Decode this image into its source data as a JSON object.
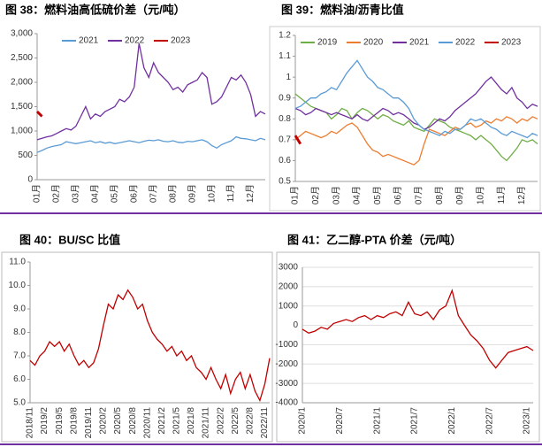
{
  "chart_data": [
    {
      "type": "line",
      "title": "图 38：燃料油高低硫价差（元/吨）",
      "legend": "top",
      "grid": false,
      "categories": [
        "01月",
        null,
        null,
        null,
        "02月",
        null,
        null,
        null,
        "03月",
        null,
        null,
        null,
        "04月",
        null,
        null,
        null,
        "05月",
        null,
        null,
        null,
        "06月",
        null,
        null,
        null,
        "07月",
        null,
        null,
        null,
        "08月",
        null,
        null,
        null,
        "09月",
        null,
        null,
        null,
        "10月",
        null,
        null,
        null,
        "11月",
        null,
        null,
        null,
        "12月",
        null,
        null,
        null
      ],
      "ylim": [
        0,
        3000
      ],
      "yticks": [
        0,
        500,
        {
          "value": 1000,
          "label": "1,000"
        },
        {
          "value": 1500,
          "label": "1,500"
        },
        {
          "value": 2000,
          "label": "2,000"
        },
        {
          "value": 2500,
          "label": "2,500"
        },
        {
          "value": 3000,
          "label": "3,000"
        }
      ],
      "series": [
        {
          "name": "2021",
          "color": "#5b9bd5",
          "values": [
            560,
            600,
            650,
            680,
            700,
            720,
            780,
            760,
            740,
            760,
            780,
            800,
            760,
            780,
            750,
            770,
            740,
            760,
            780,
            800,
            780,
            760,
            790,
            810,
            800,
            820,
            790,
            780,
            800,
            770,
            760,
            790,
            780,
            800,
            820,
            780,
            700,
            650,
            720,
            760,
            800,
            880,
            850,
            840,
            820,
            800,
            850,
            820
          ]
        },
        {
          "name": "2022",
          "color": "#7030a0",
          "values": [
            820,
            850,
            880,
            900,
            950,
            1000,
            1050,
            1020,
            1100,
            1300,
            1500,
            1250,
            1350,
            1300,
            1400,
            1450,
            1500,
            1650,
            1600,
            1700,
            1900,
            2800,
            2300,
            2100,
            2400,
            2200,
            2100,
            2000,
            1850,
            1900,
            1800,
            1950,
            2000,
            2050,
            2200,
            2100,
            1550,
            1600,
            1700,
            1900,
            2100,
            2050,
            2150,
            2000,
            1750,
            1300,
            1400,
            1350
          ]
        },
        {
          "name": "2023",
          "color": "#c00000",
          "values": [
            1400,
            1300,
            null,
            null,
            null,
            null,
            null,
            null,
            null,
            null,
            null,
            null,
            null,
            null,
            null,
            null,
            null,
            null,
            null,
            null,
            null,
            null,
            null,
            null,
            null,
            null,
            null,
            null,
            null,
            null,
            null,
            null,
            null,
            null,
            null,
            null,
            null,
            null,
            null,
            null,
            null,
            null,
            null,
            null,
            null,
            null,
            null,
            null
          ]
        }
      ]
    },
    {
      "type": "line",
      "title": "图 39：燃料油/沥青比值",
      "legend": "top",
      "grid": false,
      "categories": [
        "01月",
        null,
        null,
        null,
        "02月",
        null,
        null,
        null,
        "03月",
        null,
        null,
        null,
        "04月",
        null,
        null,
        null,
        "05月",
        null,
        null,
        null,
        "06月",
        null,
        null,
        null,
        "07月",
        null,
        null,
        null,
        "08月",
        null,
        null,
        null,
        "09月",
        null,
        null,
        null,
        "10月",
        null,
        null,
        null,
        "11月",
        null,
        null,
        null,
        "12月",
        null,
        null,
        null
      ],
      "ylim": [
        0.5,
        1.2
      ],
      "yticks": [
        0.5,
        0.6,
        0.7,
        0.8,
        0.9,
        1,
        1.1,
        1.2
      ],
      "series": [
        {
          "name": "2019",
          "color": "#70ad47",
          "values": [
            0.92,
            0.9,
            0.88,
            0.86,
            0.85,
            0.84,
            0.83,
            0.8,
            0.82,
            0.85,
            0.84,
            0.8,
            0.83,
            0.85,
            0.84,
            0.82,
            0.8,
            0.82,
            0.81,
            0.79,
            0.78,
            0.77,
            0.79,
            0.76,
            0.75,
            0.74,
            0.77,
            0.8,
            0.79,
            0.78,
            0.76,
            0.75,
            0.74,
            0.73,
            0.72,
            0.7,
            0.72,
            0.7,
            0.68,
            0.65,
            0.62,
            0.6,
            0.63,
            0.66,
            0.7,
            0.69,
            0.7,
            0.68
          ]
        },
        {
          "name": "2020",
          "color": "#ed7d31",
          "values": [
            0.7,
            0.72,
            0.74,
            0.73,
            0.72,
            0.71,
            0.72,
            0.74,
            0.73,
            0.75,
            0.77,
            0.78,
            0.76,
            0.72,
            0.68,
            0.65,
            0.64,
            0.62,
            0.63,
            0.62,
            0.61,
            0.6,
            0.59,
            0.58,
            0.6,
            0.68,
            0.75,
            0.74,
            0.73,
            0.72,
            0.74,
            0.76,
            0.75,
            0.77,
            0.78,
            0.76,
            0.77,
            0.79,
            0.78,
            0.8,
            0.79,
            0.81,
            0.8,
            0.78,
            0.8,
            0.79,
            0.81,
            0.8
          ]
        },
        {
          "name": "2021",
          "color": "#7030a0",
          "values": [
            0.85,
            0.84,
            0.82,
            0.83,
            0.85,
            0.84,
            0.83,
            0.82,
            0.83,
            0.82,
            0.81,
            0.8,
            0.82,
            0.8,
            0.79,
            0.81,
            0.83,
            0.85,
            0.84,
            0.82,
            0.83,
            0.82,
            0.8,
            0.78,
            0.77,
            0.75,
            0.76,
            0.78,
            0.8,
            0.79,
            0.81,
            0.84,
            0.86,
            0.88,
            0.9,
            0.92,
            0.95,
            0.98,
            1.0,
            0.97,
            0.94,
            0.92,
            0.95,
            0.9,
            0.88,
            0.85,
            0.87,
            0.86
          ]
        },
        {
          "name": "2022",
          "color": "#5b9bd5",
          "values": [
            0.85,
            0.86,
            0.88,
            0.9,
            0.9,
            0.92,
            0.93,
            0.95,
            0.94,
            0.98,
            1.02,
            1.05,
            1.08,
            1.04,
            1.0,
            0.98,
            0.95,
            0.94,
            0.92,
            0.9,
            0.9,
            0.88,
            0.85,
            0.8,
            0.77,
            0.75,
            0.74,
            0.73,
            0.72,
            0.74,
            0.73,
            0.75,
            0.75,
            0.77,
            0.8,
            0.79,
            0.8,
            0.78,
            0.76,
            0.75,
            0.73,
            0.72,
            0.74,
            0.73,
            0.72,
            0.71,
            0.73,
            0.72
          ]
        },
        {
          "name": "2023",
          "color": "#c00000",
          "values": [
            0.72,
            0.68,
            null,
            null,
            null,
            null,
            null,
            null,
            null,
            null,
            null,
            null,
            null,
            null,
            null,
            null,
            null,
            null,
            null,
            null,
            null,
            null,
            null,
            null,
            null,
            null,
            null,
            null,
            null,
            null,
            null,
            null,
            null,
            null,
            null,
            null,
            null,
            null,
            null,
            null,
            null,
            null,
            null,
            null,
            null,
            null,
            null,
            null
          ]
        }
      ]
    },
    {
      "type": "line",
      "title": "图 40：BU/SC 比值",
      "grid": false,
      "categories": [
        "2018/11",
        null,
        null,
        "2019/2",
        null,
        null,
        "2019/5",
        null,
        null,
        "2019/8",
        null,
        null,
        "2019/11",
        null,
        null,
        "2020/2",
        null,
        null,
        "2020/5",
        null,
        null,
        "2020/8",
        null,
        null,
        "2020/11",
        null,
        null,
        "2021/2",
        null,
        null,
        "2021/5",
        null,
        null,
        "2021/8",
        null,
        null,
        "2021/11",
        null,
        null,
        "2022/2",
        null,
        null,
        "2022/5",
        null,
        null,
        "2022/8",
        null,
        null,
        "2022/11",
        null
      ],
      "ylim": [
        5,
        11
      ],
      "yticks": [
        {
          "value": 5,
          "label": "5.0"
        },
        {
          "value": 6,
          "label": "6.0"
        },
        {
          "value": 7,
          "label": "7.0"
        },
        {
          "value": 8,
          "label": "8.0"
        },
        {
          "value": 9,
          "label": "9.0"
        },
        {
          "value": 10,
          "label": "10.0"
        },
        {
          "value": 11,
          "label": "11.0"
        }
      ],
      "series": [
        {
          "name": null,
          "color": "#c00000",
          "values": [
            6.8,
            6.6,
            7.0,
            7.2,
            7.6,
            7.4,
            7.6,
            7.2,
            7.5,
            7.0,
            6.6,
            6.8,
            6.5,
            6.7,
            7.3,
            8.3,
            9.2,
            9.0,
            9.6,
            9.4,
            9.8,
            9.5,
            9.0,
            9.2,
            8.5,
            8.0,
            7.7,
            7.5,
            7.2,
            7.4,
            7.0,
            7.2,
            6.8,
            7.0,
            6.5,
            6.3,
            6.0,
            6.5,
            6.0,
            5.6,
            6.2,
            5.4,
            6.0,
            6.3,
            5.6,
            6.2,
            5.5,
            5.1,
            5.8,
            6.9
          ]
        }
      ]
    },
    {
      "type": "line",
      "title": "图 41：乙二醇-PTA 价差（元/吨）",
      "grid": true,
      "categories": [
        "2020/1",
        null,
        null,
        null,
        null,
        null,
        "2020/7",
        null,
        null,
        null,
        null,
        null,
        "2021/1",
        null,
        null,
        null,
        null,
        null,
        "2021/7",
        null,
        null,
        null,
        null,
        null,
        "2022/1",
        null,
        null,
        null,
        null,
        null,
        "2022/7",
        null,
        null,
        null,
        null,
        null,
        "2023/1",
        null
      ],
      "ylim": [
        -4000,
        3000
      ],
      "yticks": [
        -4000,
        -3000,
        -2000,
        -1000,
        0,
        1000,
        2000,
        3000
      ],
      "series": [
        {
          "name": null,
          "color": "#c00000",
          "values": [
            -200,
            -400,
            -300,
            -100,
            -200,
            100,
            200,
            300,
            200,
            400,
            500,
            300,
            500,
            400,
            600,
            700,
            500,
            1200,
            600,
            500,
            700,
            300,
            800,
            1000,
            1800,
            500,
            0,
            -500,
            -800,
            -1200,
            -1800,
            -2200,
            -1800,
            -1400,
            -1300,
            -1200,
            -1100,
            -1300
          ]
        }
      ]
    }
  ]
}
